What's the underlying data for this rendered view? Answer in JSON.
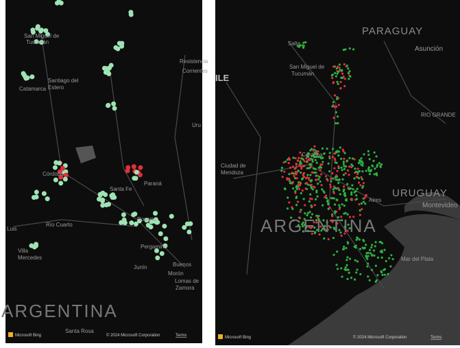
{
  "left_panel": {
    "labels": [
      "San Miguel de",
      "Tucumán",
      "Catamarca",
      "Santiago del",
      "Estero",
      "Resistencia",
      "Corrientes",
      "Córdoba",
      "Santa Fe",
      "Paraná",
      "Río Cuarto",
      "Rosario",
      "Pergamino",
      "Junín",
      "Luis",
      "Villa",
      "Mercedes",
      "Buenos",
      "Morón",
      "Lomas de",
      "Zamora",
      "Uru",
      "ARGENTINA",
      "Santa Rosa"
    ],
    "footer": {
      "brand": "Microsoft Bing",
      "copyright": "© 2024 Microsoft Corporation",
      "terms": "Terms"
    }
  },
  "right_panel": {
    "labels": [
      "PARAGUAY",
      "Asunción",
      "Salta",
      "San Miguel de",
      "Tucumán",
      "ILE",
      "RIO GRANDE",
      "URUGUAY",
      "Montevideo",
      "Ciudad de",
      "Mendoza",
      "Córdoba",
      "ARGENTINA",
      "Aires",
      "Mar del Plata"
    ],
    "footer": {
      "brand": "Microsoft Bing",
      "copyright": "© 2024 Microsoft Corporation",
      "terms": "Terms"
    }
  }
}
